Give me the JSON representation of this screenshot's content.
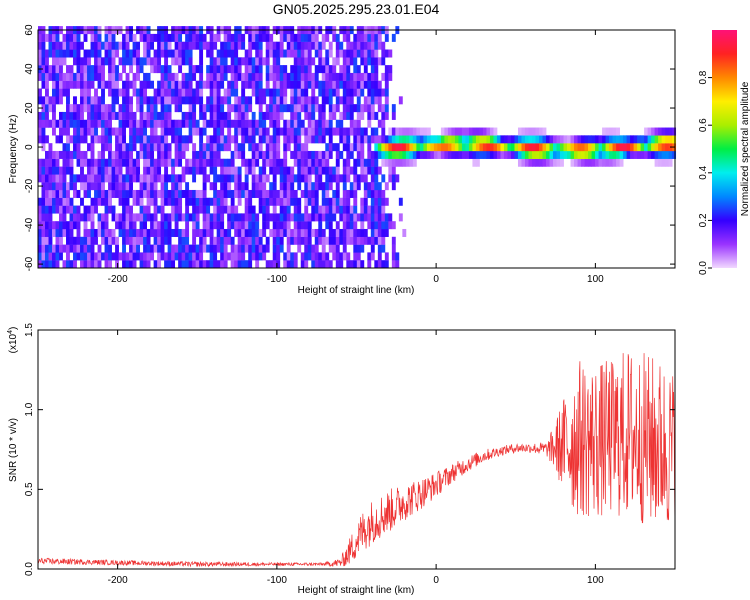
{
  "title": "GN05.2025.295.23.01.E04",
  "chart_data": [
    {
      "type": "heatmap",
      "title": "GN05.2025.295.23.01.E04",
      "xlabel": "Height of straight line (km)",
      "ylabel": "Frequency (Hz)",
      "xlim": [
        -250,
        150
      ],
      "ylim": [
        -62,
        60
      ],
      "x_ticks": [
        -200,
        -100,
        0,
        100
      ],
      "x_tick_labels": [
        "-200",
        "-100",
        "0",
        "100"
      ],
      "y_ticks": [
        60,
        40,
        20,
        0,
        -20,
        -40,
        -60
      ],
      "y_tick_labels": [
        "60",
        "40",
        "20",
        "0",
        "-20",
        "-40",
        "-60"
      ],
      "grid": false,
      "colorbar": {
        "label": "Normalized spectral amplitude",
        "range": [
          0.0,
          1.0
        ],
        "ticks": [
          0.0,
          0.2,
          0.4,
          0.6,
          0.8
        ],
        "tick_labels": [
          "0.0",
          "0.2",
          "0.4",
          "0.6",
          "0.8"
        ],
        "colormap": "rainbow",
        "colors": [
          "#f2d8ff",
          "#9933ff",
          "#3300ff",
          "#0088ff",
          "#00eeee",
          "#00ee44",
          "#aaee00",
          "#ffee00",
          "#ff8800",
          "#ff2222",
          "#ff1177"
        ]
      },
      "regions": [
        {
          "description": "broadband low-amplitude noise",
          "x_range": [
            -250,
            -20
          ],
          "y_range": [
            -62,
            60
          ],
          "amplitude": 0.15
        },
        {
          "description": "narrow band near 0 Hz",
          "x_range": [
            -40,
            150
          ],
          "y_range": [
            -8,
            8
          ],
          "amplitude_peak": 0.95
        }
      ]
    },
    {
      "type": "line",
      "xlabel": "Height of straight line (km)",
      "ylabel": "SNR (10 * v/v)",
      "y_multiplier_label": "(x10",
      "y_multiplier_exp": "4",
      "y_multiplier_close": ")",
      "xlim": [
        -250,
        150
      ],
      "ylim": [
        0,
        1.5
      ],
      "x_ticks": [
        -200,
        -100,
        0,
        100
      ],
      "x_tick_labels": [
        "-200",
        "-100",
        "0",
        "100"
      ],
      "y_ticks": [
        0.0,
        0.5,
        1.0,
        1.5
      ],
      "y_tick_labels": [
        "0.0",
        "0.5",
        "1.0",
        "1.5"
      ],
      "grid": false,
      "series": [
        {
          "color": "#ee3333",
          "x": [
            -250,
            -200,
            -150,
            -100,
            -70,
            -60,
            -55,
            -50,
            -45,
            -40,
            -30,
            -20,
            -10,
            0,
            10,
            20,
            30,
            40,
            50,
            60,
            70,
            80,
            85,
            90,
            100,
            110,
            120,
            130,
            140,
            150
          ],
          "y": [
            0.05,
            0.04,
            0.03,
            0.03,
            0.03,
            0.04,
            0.1,
            0.18,
            0.25,
            0.3,
            0.36,
            0.42,
            0.47,
            0.53,
            0.6,
            0.66,
            0.71,
            0.74,
            0.76,
            0.76,
            0.75,
            0.78,
            0.8,
            0.82,
            0.8,
            0.82,
            0.85,
            0.82,
            0.78,
            0.75
          ],
          "noise_amplitude": [
            0.02,
            0.015,
            0.015,
            0.01,
            0.01,
            0.03,
            0.08,
            0.12,
            0.14,
            0.14,
            0.14,
            0.12,
            0.1,
            0.08,
            0.06,
            0.05,
            0.04,
            0.03,
            0.03,
            0.03,
            0.05,
            0.3,
            0.45,
            0.5,
            0.5,
            0.5,
            0.55,
            0.55,
            0.55,
            0.5
          ]
        }
      ]
    }
  ]
}
